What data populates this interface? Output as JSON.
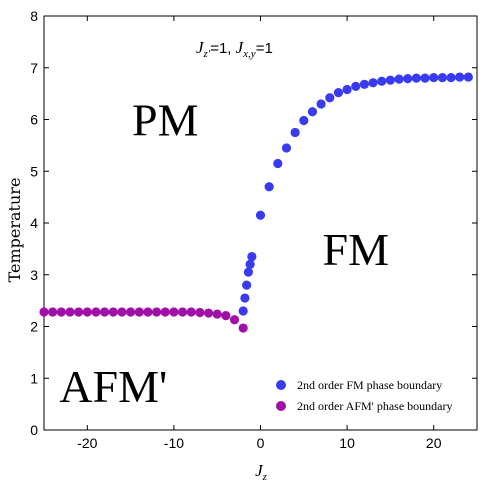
{
  "chart_data": {
    "type": "scatter",
    "title": "",
    "xlabel": "J_z",
    "ylabel": "Temperature",
    "xlim": [
      -25,
      25
    ],
    "ylim": [
      0,
      8
    ],
    "xticks": [
      -20,
      -10,
      0,
      10,
      20
    ],
    "yticks": [
      0,
      1,
      2,
      3,
      4,
      5,
      6,
      7,
      8
    ],
    "grid": false,
    "legend_position": "bottom-right",
    "annotation": {
      "j1_sym": "J",
      "j1_sub": "z'",
      "j1_val": "=1, ",
      "j2_sym": "J",
      "j2_sub": "x,y",
      "j2_val": "=1"
    },
    "region_labels": [
      {
        "text": "PM",
        "x": -11,
        "y": 6.0
      },
      {
        "text": "FM",
        "x": 11,
        "y": 3.5
      },
      {
        "text": "AFM'",
        "x": -17,
        "y": 0.85
      }
    ],
    "series": [
      {
        "name": "2nd order FM phase boundary",
        "color": "#3a3af0",
        "x": [
          -2.0,
          -1.8,
          -1.6,
          -1.4,
          -1.2,
          -1.0,
          0.0,
          1.0,
          2.0,
          3.0,
          4.0,
          5.0,
          6.0,
          7.0,
          8.0,
          9.0,
          10.0,
          11.0,
          12.0,
          13.0,
          14.0,
          15.0,
          16.0,
          17.0,
          18.0,
          19.0,
          20.0,
          21.0,
          22.0,
          23.0,
          24.0
        ],
        "y": [
          2.3,
          2.55,
          2.8,
          3.05,
          3.2,
          3.35,
          4.15,
          4.7,
          5.15,
          5.45,
          5.75,
          5.98,
          6.15,
          6.3,
          6.42,
          6.52,
          6.58,
          6.64,
          6.68,
          6.71,
          6.74,
          6.76,
          6.78,
          6.79,
          6.8,
          6.8,
          6.81,
          6.81,
          6.81,
          6.82,
          6.82
        ]
      },
      {
        "name": "2nd order AFM' phase boundary",
        "color": "#a010a8",
        "x": [
          -25,
          -24,
          -23,
          -22,
          -21,
          -20,
          -19,
          -18,
          -17,
          -16,
          -15,
          -14,
          -13,
          -12,
          -11,
          -10,
          -9,
          -8,
          -7,
          -6,
          -5,
          -4,
          -3,
          -2
        ],
        "y": [
          2.28,
          2.28,
          2.28,
          2.28,
          2.28,
          2.28,
          2.28,
          2.28,
          2.28,
          2.28,
          2.28,
          2.28,
          2.28,
          2.28,
          2.28,
          2.28,
          2.28,
          2.28,
          2.27,
          2.26,
          2.24,
          2.21,
          2.13,
          1.97
        ]
      }
    ]
  }
}
